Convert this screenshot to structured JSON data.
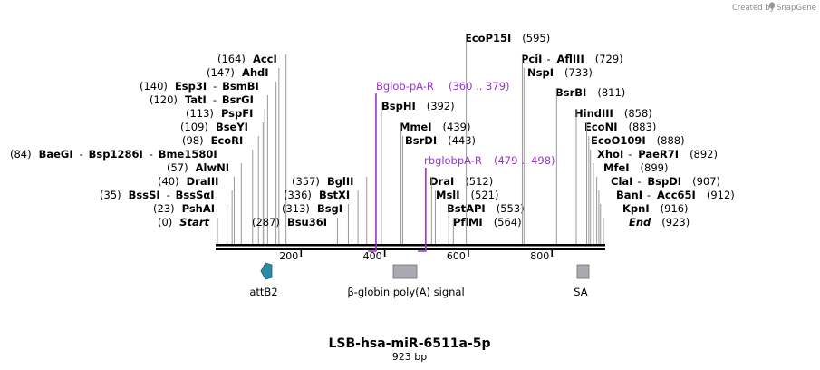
{
  "title": "LSB-hsa-miR-6511a-5p",
  "length_label": "923 bp",
  "credit": {
    "prefix": "Created by",
    "brand": "SnapGene"
  },
  "sequence_length": 923,
  "axis": {
    "ticks": [
      200,
      400,
      600,
      800
    ]
  },
  "sites": [
    {
      "pos": 0,
      "name": "Start",
      "name2": "",
      "pair": false,
      "italic": true
    },
    {
      "pos": 23,
      "name": "PshAI",
      "name2": "",
      "pair": false
    },
    {
      "pos": 35,
      "name": "BssSI",
      "name2": "BssSαI",
      "pair": true
    },
    {
      "pos": 40,
      "name": "DraIII",
      "name2": "",
      "pair": false
    },
    {
      "pos": 57,
      "name": "AlwNI",
      "name2": "",
      "pair": false
    },
    {
      "pos": 84,
      "name": "BaeGI",
      "name2": "Bsp1286I",
      "name3": "Bme1580I",
      "pair": true
    },
    {
      "pos": 98,
      "name": "EcoRI",
      "name2": "",
      "pair": false
    },
    {
      "pos": 109,
      "name": "BseYI",
      "name2": "",
      "pair": false
    },
    {
      "pos": 113,
      "name": "PspFI",
      "name2": "",
      "pair": false
    },
    {
      "pos": 120,
      "name": "TatI",
      "name2": "BsrGI",
      "pair": true
    },
    {
      "pos": 140,
      "name": "Esp3I",
      "name2": "BsmBI",
      "pair": true
    },
    {
      "pos": 147,
      "name": "AhdI",
      "name2": "",
      "pair": false
    },
    {
      "pos": 164,
      "name": "AccI",
      "name2": "",
      "pair": false
    },
    {
      "pos": 287,
      "name": "Bsu36I",
      "name2": "",
      "pair": false
    },
    {
      "pos": 313,
      "name": "BsgI",
      "name2": "",
      "pair": false
    },
    {
      "pos": 336,
      "name": "BstXI",
      "name2": "",
      "pair": false
    },
    {
      "pos": 357,
      "name": "BglII",
      "name2": "",
      "pair": false
    },
    {
      "pos": 392,
      "name": "BspHI",
      "name2": "",
      "pair": false
    },
    {
      "pos": 439,
      "name": "MmeI",
      "name2": "",
      "pair": false
    },
    {
      "pos": 443,
      "name": "BsrDI",
      "name2": "",
      "pair": false
    },
    {
      "pos": 512,
      "name": "DraI",
      "name2": "",
      "pair": false
    },
    {
      "pos": 521,
      "name": "MslI",
      "name2": "",
      "pair": false
    },
    {
      "pos": 553,
      "name": "BstAPI",
      "name2": "",
      "pair": false
    },
    {
      "pos": 564,
      "name": "PflMI",
      "name2": "",
      "pair": false
    },
    {
      "pos": 595,
      "name": "EcoP15I",
      "name2": "",
      "pair": false
    },
    {
      "pos": 729,
      "name": "PciI",
      "name2": "AflIII",
      "pair": true
    },
    {
      "pos": 733,
      "name": "NspI",
      "name2": "",
      "pair": false
    },
    {
      "pos": 811,
      "name": "BsrBI",
      "name2": "",
      "pair": false
    },
    {
      "pos": 858,
      "name": "HindIII",
      "name2": "",
      "pair": false
    },
    {
      "pos": 883,
      "name": "EcoNI",
      "name2": "",
      "pair": false
    },
    {
      "pos": 888,
      "name": "EcoO109I",
      "name2": "",
      "pair": false
    },
    {
      "pos": 892,
      "name": "XhoI",
      "name2": "PaeR7I",
      "pair": true
    },
    {
      "pos": 899,
      "name": "MfeI",
      "name2": "",
      "pair": false
    },
    {
      "pos": 907,
      "name": "ClaI",
      "name2": "BspDI",
      "pair": true
    },
    {
      "pos": 912,
      "name": "BanI",
      "name2": "Acc65I",
      "pair": true
    },
    {
      "pos": 916,
      "name": "KpnI",
      "name2": "",
      "pair": false
    },
    {
      "pos": 923,
      "name": "End",
      "name2": "",
      "pair": false,
      "italic": true
    }
  ],
  "primers": [
    {
      "name": "Bglob-pA-R",
      "range": "(360 .. 379)"
    },
    {
      "name": "rbglobpA-R",
      "range": "(479 .. 498)"
    }
  ],
  "features": [
    {
      "name": "attB2",
      "color": "#2e8ba6",
      "shape": "arrow-left"
    },
    {
      "name": "β-globin poly(A) signal",
      "color": "#a9a9b2",
      "shape": "box"
    },
    {
      "name": "SA",
      "color": "#a9a9b2",
      "shape": "box"
    }
  ],
  "colors": {
    "primer": "#9933cc",
    "backbone": "#000000"
  }
}
